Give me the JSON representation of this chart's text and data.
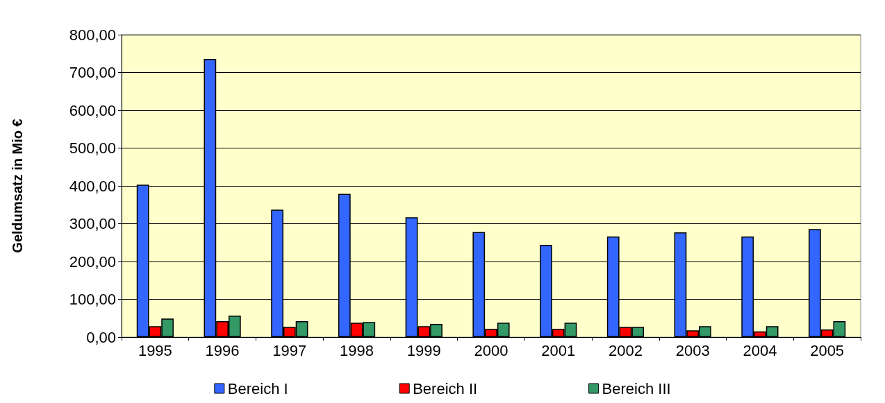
{
  "chart_data": {
    "type": "bar",
    "ylabel": "Geldumsatz in Mio €",
    "categories": [
      "1995",
      "1996",
      "1997",
      "1998",
      "1999",
      "2000",
      "2001",
      "2002",
      "2003",
      "2004",
      "2005"
    ],
    "series": [
      {
        "name": "Bereich I",
        "color": "#3366ff",
        "values": [
          403,
          736,
          337,
          379,
          317,
          278,
          244,
          266,
          277,
          266,
          286
        ]
      },
      {
        "name": "Bereich II",
        "color": "#ff0000",
        "values": [
          29,
          42,
          27,
          38,
          29,
          22,
          22,
          27,
          18,
          15,
          20
        ]
      },
      {
        "name": "Bereich III",
        "color": "#339966",
        "values": [
          49,
          57,
          42,
          40,
          35,
          38,
          38,
          27,
          29,
          29,
          42
        ]
      }
    ],
    "ylim": [
      0,
      800
    ],
    "yticks": [
      {
        "value": 0,
        "label": "0,00"
      },
      {
        "value": 100,
        "label": "100,00"
      },
      {
        "value": 200,
        "label": "200,00"
      },
      {
        "value": 300,
        "label": "300,00"
      },
      {
        "value": 400,
        "label": "400,00"
      },
      {
        "value": 500,
        "label": "500,00"
      },
      {
        "value": 600,
        "label": "600,00"
      },
      {
        "value": 700,
        "label": "700,00"
      },
      {
        "value": 800,
        "label": "800,00"
      }
    ],
    "grid": "y",
    "legend": "bottom"
  }
}
